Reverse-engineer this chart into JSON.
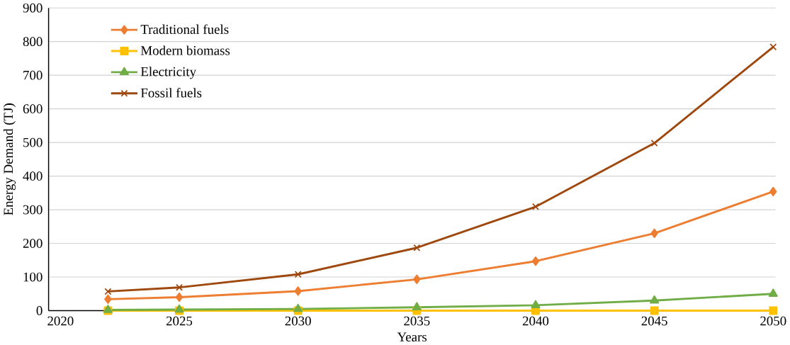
{
  "chart_data": {
    "type": "line",
    "xlabel": "Years",
    "ylabel": "Energy Demand (TJ)",
    "x": [
      2022,
      2025,
      2030,
      2035,
      2040,
      2045,
      2050
    ],
    "series": [
      {
        "name": "Traditional fuels",
        "color": "#ed7d31",
        "marker": "diamond",
        "values": [
          34,
          40,
          58,
          93,
          147,
          230,
          354
        ]
      },
      {
        "name": "Modern biomass",
        "color": "#ffc000",
        "marker": "square",
        "values": [
          0,
          0,
          0,
          0,
          0,
          0,
          0
        ]
      },
      {
        "name": "Electricity",
        "color": "#70ad47",
        "marker": "triangle",
        "values": [
          2,
          3,
          5,
          10,
          16,
          30,
          50
        ]
      },
      {
        "name": "Fossil fuels",
        "color": "#9e480e",
        "marker": "cross",
        "values": [
          57,
          69,
          108,
          187,
          309,
          498,
          784
        ]
      }
    ],
    "xlim": [
      2019.5,
      2050.1
    ],
    "xticks": [
      2020,
      2025,
      2030,
      2035,
      2040,
      2045,
      2050
    ],
    "ylim": [
      0,
      900
    ],
    "yticks": [
      0,
      100,
      200,
      300,
      400,
      500,
      600,
      700,
      800,
      900
    ],
    "grid": "y",
    "legend": "top left",
    "line_style": "solid"
  }
}
